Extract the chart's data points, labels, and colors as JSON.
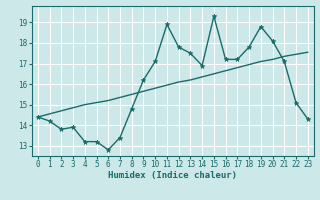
{
  "x": [
    0,
    1,
    2,
    3,
    4,
    5,
    6,
    7,
    8,
    9,
    10,
    11,
    12,
    13,
    14,
    15,
    16,
    17,
    18,
    19,
    20,
    21,
    22,
    23
  ],
  "y_main": [
    14.4,
    14.2,
    13.8,
    13.9,
    13.2,
    13.2,
    12.8,
    13.4,
    14.8,
    16.2,
    17.1,
    18.9,
    17.8,
    17.5,
    16.9,
    19.3,
    17.2,
    17.2,
    17.8,
    18.8,
    18.1,
    17.1,
    15.1,
    14.3
  ],
  "y_trend": [
    14.4,
    14.55,
    14.7,
    14.85,
    15.0,
    15.1,
    15.2,
    15.35,
    15.5,
    15.65,
    15.8,
    15.95,
    16.1,
    16.2,
    16.35,
    16.5,
    16.65,
    16.8,
    16.95,
    17.1,
    17.2,
    17.35,
    17.45,
    17.55
  ],
  "line_color": "#1a6b6b",
  "bg_color": "#cce8e8",
  "grid_color": "#ffffff",
  "xlabel": "Humidex (Indice chaleur)",
  "ylim": [
    12.5,
    19.8
  ],
  "xlim": [
    -0.5,
    23.5
  ],
  "yticks": [
    13,
    14,
    15,
    16,
    17,
    18,
    19
  ],
  "xticks": [
    0,
    1,
    2,
    3,
    4,
    5,
    6,
    7,
    8,
    9,
    10,
    11,
    12,
    13,
    14,
    15,
    16,
    17,
    18,
    19,
    20,
    21,
    22,
    23
  ]
}
